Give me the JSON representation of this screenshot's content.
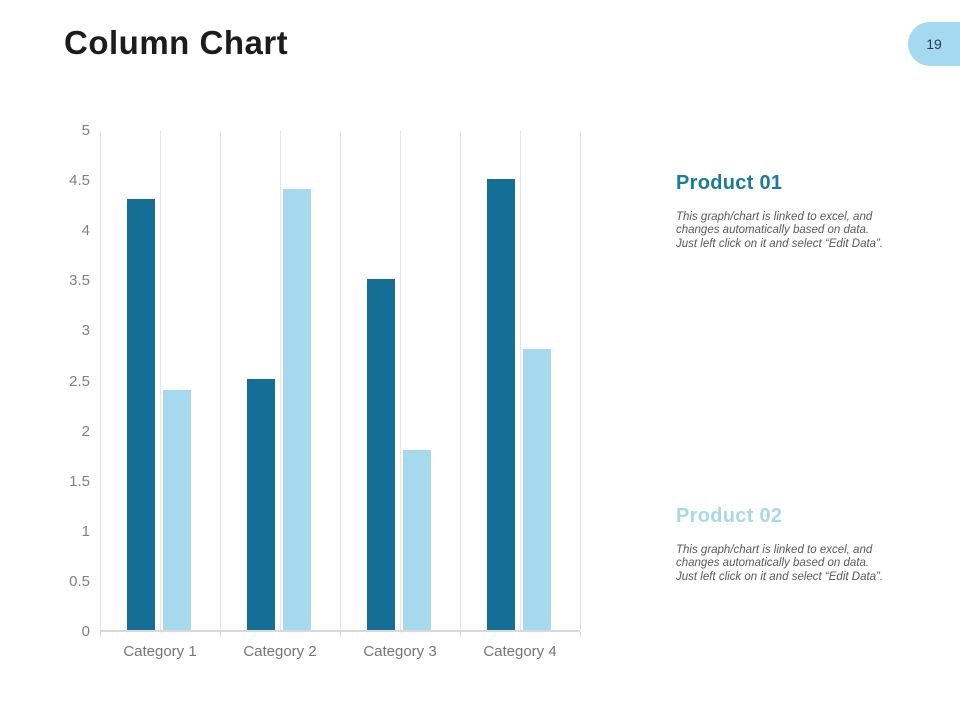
{
  "slide": {
    "title": "Column Chart",
    "page_number": "19",
    "background_color": "#ffffff",
    "badge_color": "#a5d9f1"
  },
  "chart_data": {
    "type": "bar",
    "title": "",
    "xlabel": "",
    "ylabel": "",
    "categories": [
      "Category 1",
      "Category 2",
      "Category 3",
      "Category 4"
    ],
    "series": [
      {
        "name": "Product 01",
        "color": "#146e95",
        "values": [
          4.3,
          2.5,
          3.5,
          4.5
        ]
      },
      {
        "name": "Product 02",
        "color": "#a6d8ee",
        "values": [
          2.4,
          4.4,
          1.8,
          2.8
        ]
      }
    ],
    "ylim": [
      0,
      5
    ],
    "ytick_step": 0.5,
    "ytick_labels": [
      "5",
      "4.5",
      "4",
      "3.5",
      "3",
      "2.5",
      "2",
      "1.5",
      "1",
      "0.5",
      "0"
    ],
    "grid": "vertical-only",
    "legend_position": "none"
  },
  "annotations": [
    {
      "heading": "Product 01",
      "heading_color": "#177d99",
      "body_lines": [
        "This graph/chart is linked to excel, and",
        "changes automatically based on data.",
        "Just left click on it and select “Edit Data”."
      ]
    },
    {
      "heading": "Product 02",
      "heading_color": "#a9d8ea",
      "body_lines": [
        "This graph/chart is linked to excel, and",
        "changes automatically based on data.",
        "Just left click on it and select “Edit Data”."
      ]
    }
  ]
}
